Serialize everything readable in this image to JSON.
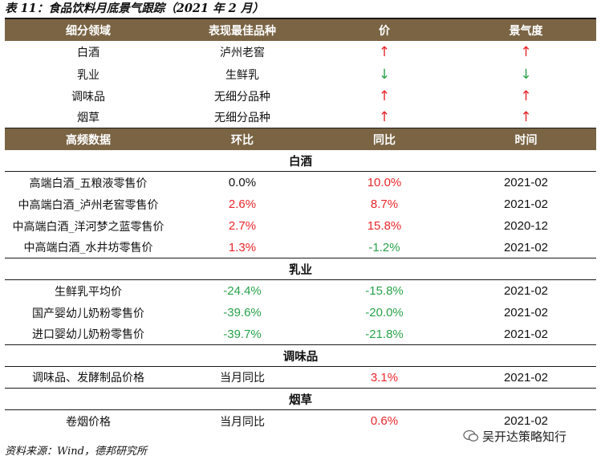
{
  "title": "表 11：食品饮料月底景气跟踪（2021 年 2 月）",
  "top_header": [
    "细分领域",
    "表现最佳品种",
    "价",
    "景气度"
  ],
  "top_rows": [
    {
      "sector": "白酒",
      "best": "泸州老窖",
      "price": "↑",
      "sentiment": "↑"
    },
    {
      "sector": "乳业",
      "best": "生鲜乳",
      "price": "↓",
      "sentiment": "↓"
    },
    {
      "sector": "调味品",
      "best": "无细分品种",
      "price": "↑",
      "sentiment": "↑"
    },
    {
      "sector": "烟草",
      "best": "无细分品种",
      "price": "↑",
      "sentiment": "↑"
    }
  ],
  "hf_header": [
    "高频数据",
    "环比",
    "同比",
    "时间"
  ],
  "sections": [
    {
      "name": "白酒",
      "rows": [
        {
          "label": "高端白酒_五粮液零售价",
          "mom": "0.0%",
          "yoy": "10.0%",
          "time": "2021-02"
        },
        {
          "label": "中高端白酒_泸州老窖零售价",
          "mom": "2.6%",
          "yoy": "8.7%",
          "time": "2021-02"
        },
        {
          "label": "中高端白酒_洋河梦之蓝零售价",
          "mom": "2.7%",
          "yoy": "15.8%",
          "time": "2020-12"
        },
        {
          "label": "中高端白酒_水井坊零售价",
          "mom": "1.3%",
          "yoy": "-1.2%",
          "time": "2021-02"
        }
      ]
    },
    {
      "name": "乳业",
      "rows": [
        {
          "label": "生鲜乳平均价",
          "mom": "-24.4%",
          "yoy": "-15.8%",
          "time": "2021-02"
        },
        {
          "label": "国产婴幼儿奶粉零售价",
          "mom": "-39.6%",
          "yoy": "-20.0%",
          "time": "2021-02"
        },
        {
          "label": "进口婴幼儿奶粉零售价",
          "mom": "-39.7%",
          "yoy": "-21.8%",
          "time": "2021-02"
        }
      ]
    },
    {
      "name": "调味品",
      "rows": [
        {
          "label": "调味品、发酵制品价格",
          "mom": "当月同比",
          "yoy": "3.1%",
          "time": "2021-02"
        }
      ]
    },
    {
      "name": "烟草",
      "rows": [
        {
          "label": "卷烟价格",
          "mom": "当月同比",
          "yoy": "0.6%",
          "time": "2021-02"
        }
      ]
    }
  ],
  "footer": "资料来源：Wind，德邦研究所",
  "watermark": "吴开达策略知行",
  "colors": {
    "header_bg": "#7a6444",
    "up": "#e8262b",
    "down": "#2aa24b"
  }
}
